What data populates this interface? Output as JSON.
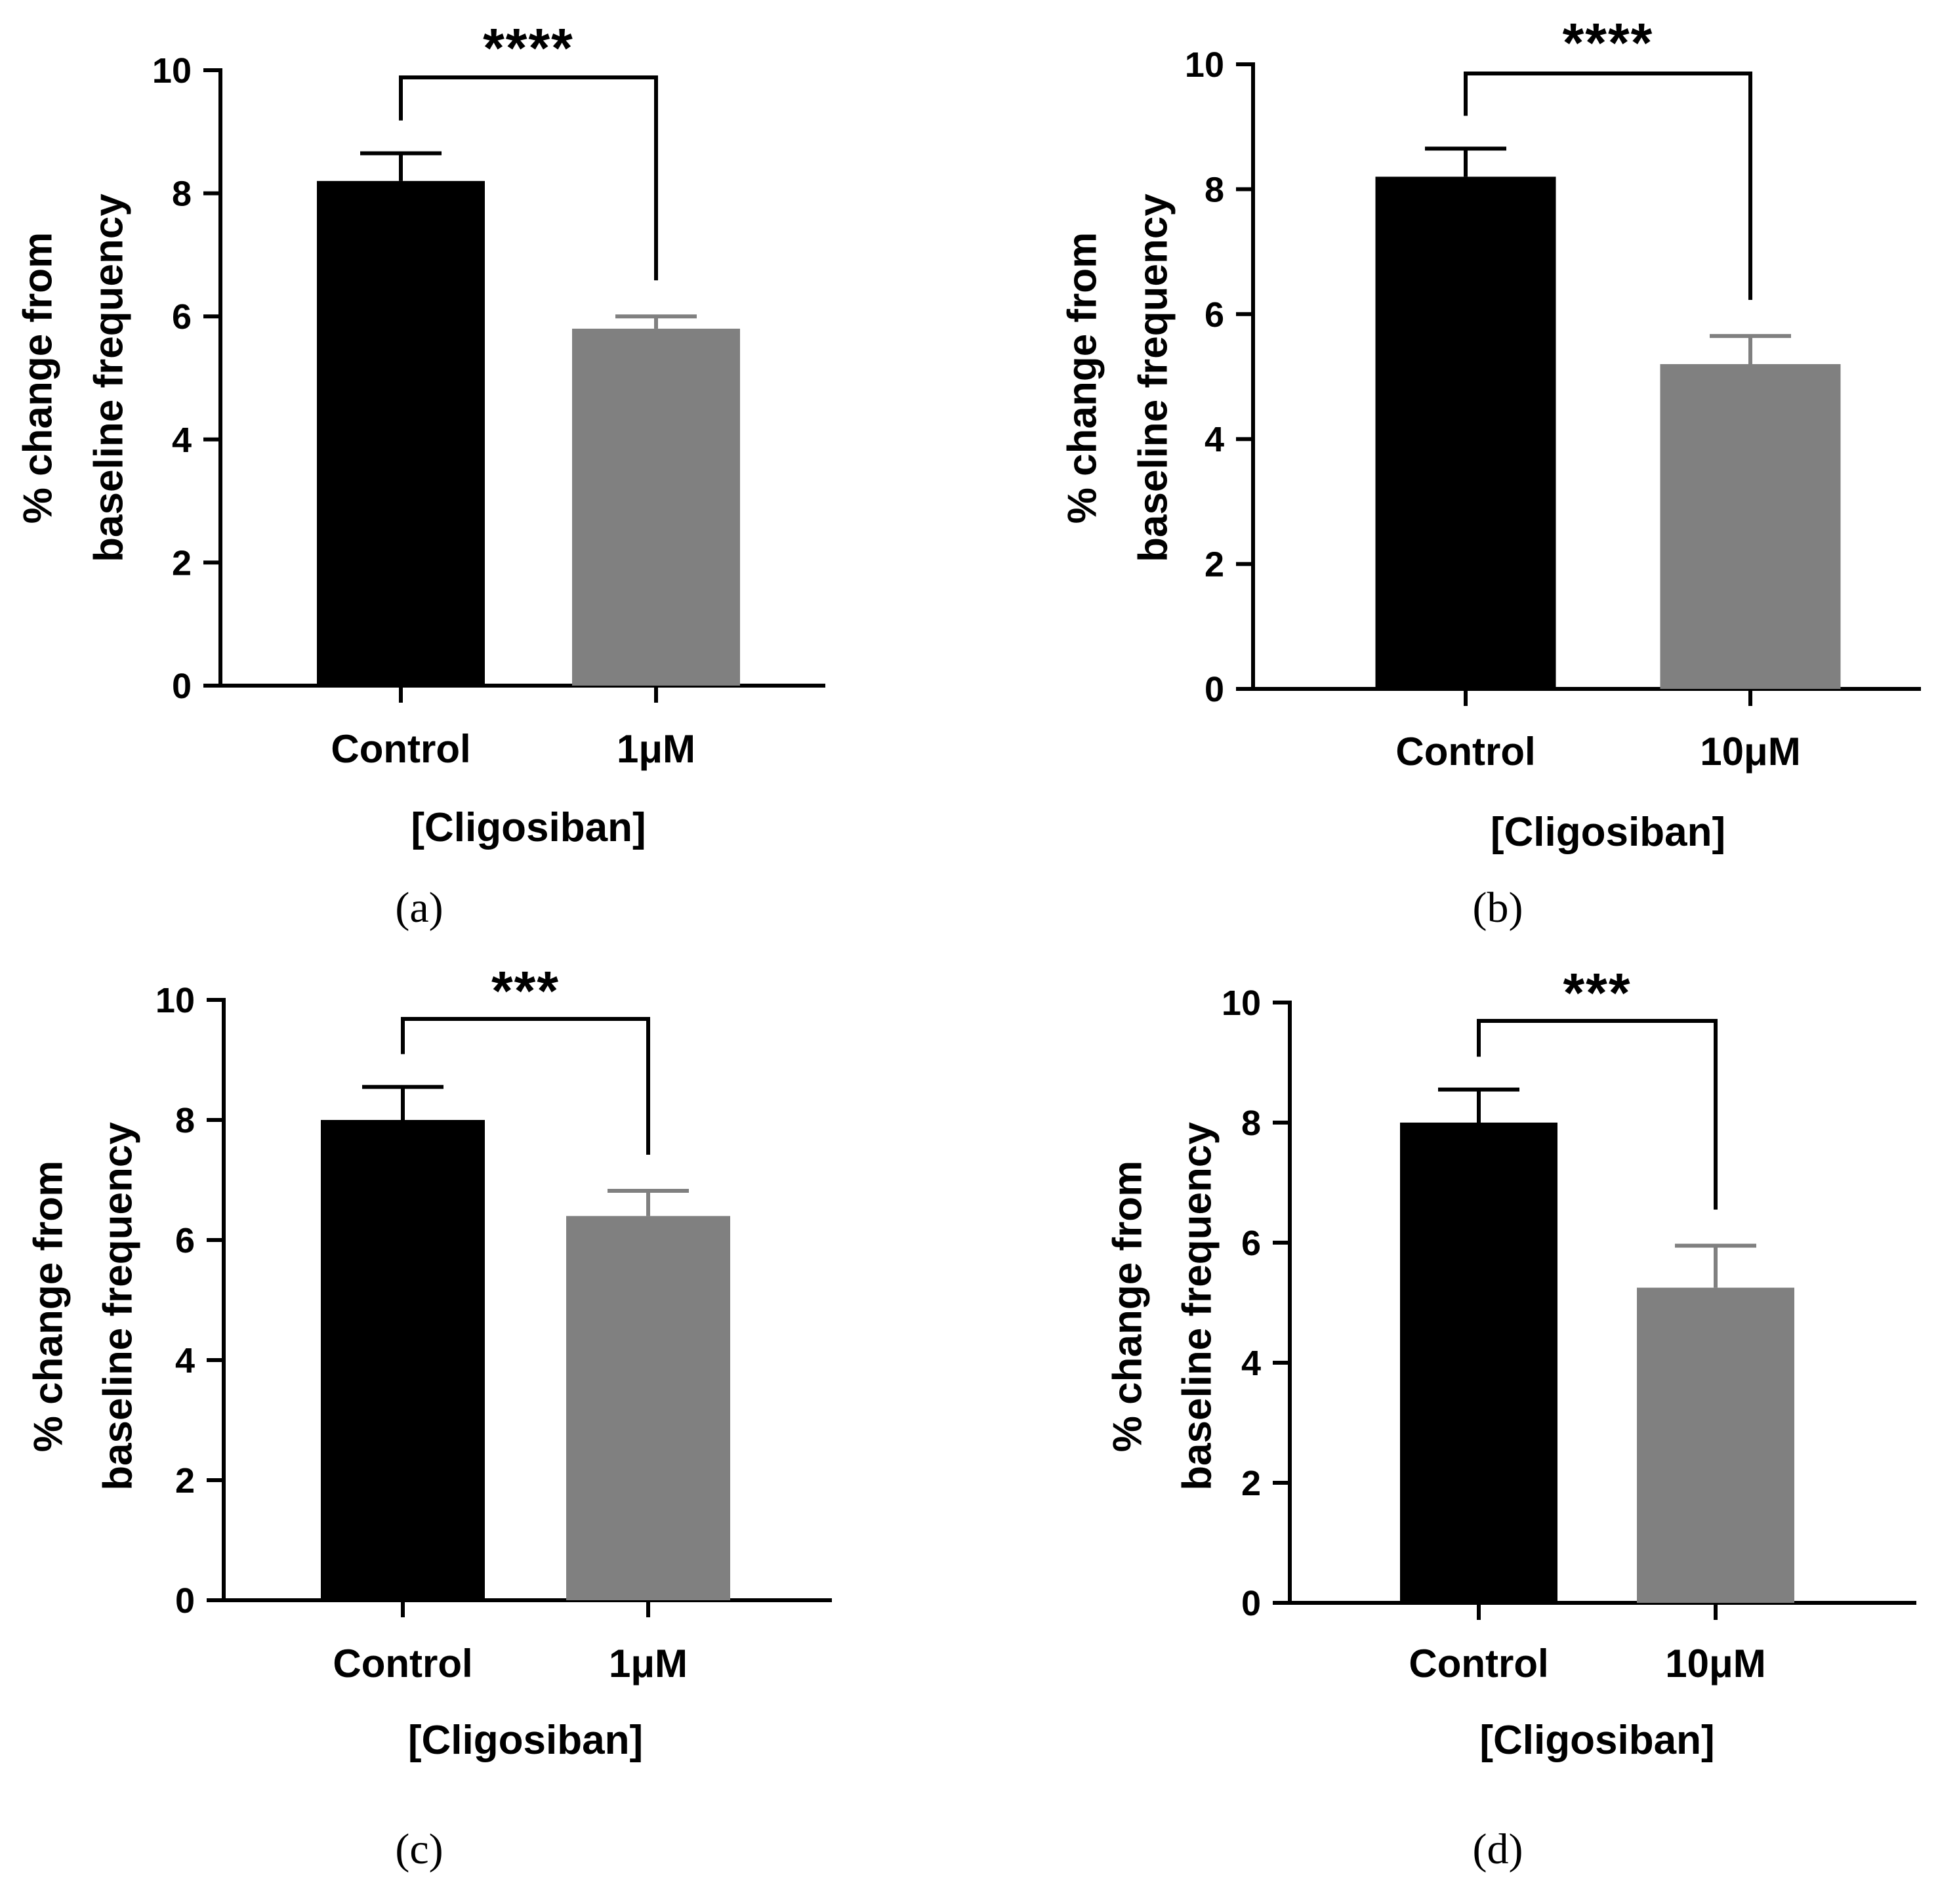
{
  "figure": {
    "colors": {
      "control": "#000000",
      "treatment": "#808080",
      "axis": "#000000"
    }
  },
  "chart_data": [
    {
      "panel": "(a)",
      "type": "bar",
      "categories": [
        "Control",
        "1μM"
      ],
      "values": [
        8.2,
        5.8
      ],
      "errors": [
        0.45,
        0.2
      ],
      "xlabel": "[Cligosiban]",
      "ylabel_line1": "% change from",
      "ylabel_line2": "baseline frequency",
      "ylim": [
        0,
        10
      ],
      "yticks": [
        "0",
        "2",
        "4",
        "6",
        "8",
        "10"
      ],
      "significance": "****"
    },
    {
      "panel": "(b)",
      "type": "bar",
      "categories": [
        "Control",
        "10μM"
      ],
      "values": [
        8.2,
        5.2
      ],
      "errors": [
        0.45,
        0.45
      ],
      "xlabel": "[Cligosiban]",
      "ylabel_line1": "% change from",
      "ylabel_line2": "baseline frequency",
      "ylim": [
        0,
        10
      ],
      "yticks": [
        "0",
        "2",
        "4",
        "6",
        "8",
        "10"
      ],
      "significance": "****"
    },
    {
      "panel": "(c)",
      "type": "bar",
      "categories": [
        "Control",
        "1μM"
      ],
      "values": [
        8.0,
        6.4
      ],
      "errors": [
        0.55,
        0.42
      ],
      "xlabel": "[Cligosiban]",
      "ylabel_line1": "% change from",
      "ylabel_line2": "baseline frequency",
      "ylim": [
        0,
        10
      ],
      "yticks": [
        "0",
        "2",
        "4",
        "6",
        "8",
        "10"
      ],
      "significance": "***"
    },
    {
      "panel": "(d)",
      "type": "bar",
      "categories": [
        "Control",
        "10μM"
      ],
      "values": [
        8.0,
        5.25
      ],
      "errors": [
        0.55,
        0.7
      ],
      "xlabel": "[Cligosiban]",
      "ylabel_line1": "% change from",
      "ylabel_line2": "baseline frequency",
      "ylim": [
        0,
        10
      ],
      "yticks": [
        "0",
        "2",
        "4",
        "6",
        "8",
        "10"
      ],
      "significance": "***"
    }
  ]
}
